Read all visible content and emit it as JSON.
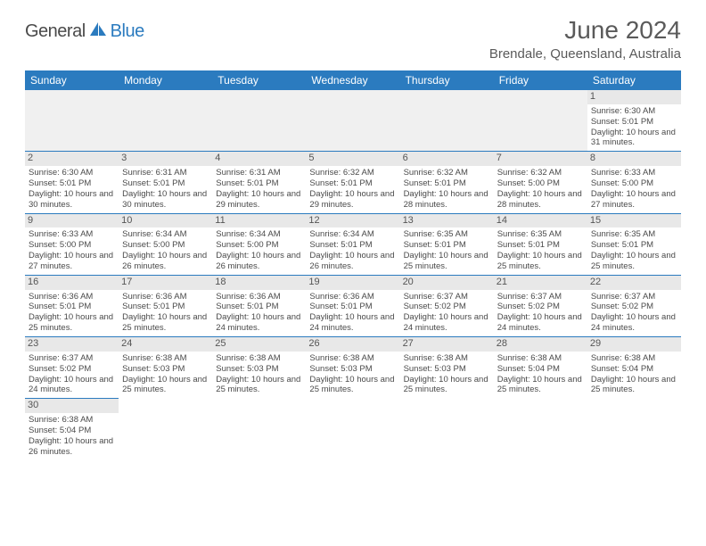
{
  "logo": {
    "text1": "General",
    "text2": "Blue",
    "icon_color": "#2b7bbf"
  },
  "title": "June 2024",
  "location": "Brendale, Queensland, Australia",
  "colors": {
    "header_bg": "#2b7bbf",
    "header_text": "#ffffff",
    "daynum_bg": "#e8e8e8",
    "text": "#4a4a4a",
    "border": "#2b7bbf"
  },
  "weekdays": [
    "Sunday",
    "Monday",
    "Tuesday",
    "Wednesday",
    "Thursday",
    "Friday",
    "Saturday"
  ],
  "days": {
    "1": {
      "sunrise": "6:30 AM",
      "sunset": "5:01 PM",
      "daylight": "10 hours and 31 minutes."
    },
    "2": {
      "sunrise": "6:30 AM",
      "sunset": "5:01 PM",
      "daylight": "10 hours and 30 minutes."
    },
    "3": {
      "sunrise": "6:31 AM",
      "sunset": "5:01 PM",
      "daylight": "10 hours and 30 minutes."
    },
    "4": {
      "sunrise": "6:31 AM",
      "sunset": "5:01 PM",
      "daylight": "10 hours and 29 minutes."
    },
    "5": {
      "sunrise": "6:32 AM",
      "sunset": "5:01 PM",
      "daylight": "10 hours and 29 minutes."
    },
    "6": {
      "sunrise": "6:32 AM",
      "sunset": "5:01 PM",
      "daylight": "10 hours and 28 minutes."
    },
    "7": {
      "sunrise": "6:32 AM",
      "sunset": "5:00 PM",
      "daylight": "10 hours and 28 minutes."
    },
    "8": {
      "sunrise": "6:33 AM",
      "sunset": "5:00 PM",
      "daylight": "10 hours and 27 minutes."
    },
    "9": {
      "sunrise": "6:33 AM",
      "sunset": "5:00 PM",
      "daylight": "10 hours and 27 minutes."
    },
    "10": {
      "sunrise": "6:34 AM",
      "sunset": "5:00 PM",
      "daylight": "10 hours and 26 minutes."
    },
    "11": {
      "sunrise": "6:34 AM",
      "sunset": "5:00 PM",
      "daylight": "10 hours and 26 minutes."
    },
    "12": {
      "sunrise": "6:34 AM",
      "sunset": "5:01 PM",
      "daylight": "10 hours and 26 minutes."
    },
    "13": {
      "sunrise": "6:35 AM",
      "sunset": "5:01 PM",
      "daylight": "10 hours and 25 minutes."
    },
    "14": {
      "sunrise": "6:35 AM",
      "sunset": "5:01 PM",
      "daylight": "10 hours and 25 minutes."
    },
    "15": {
      "sunrise": "6:35 AM",
      "sunset": "5:01 PM",
      "daylight": "10 hours and 25 minutes."
    },
    "16": {
      "sunrise": "6:36 AM",
      "sunset": "5:01 PM",
      "daylight": "10 hours and 25 minutes."
    },
    "17": {
      "sunrise": "6:36 AM",
      "sunset": "5:01 PM",
      "daylight": "10 hours and 25 minutes."
    },
    "18": {
      "sunrise": "6:36 AM",
      "sunset": "5:01 PM",
      "daylight": "10 hours and 24 minutes."
    },
    "19": {
      "sunrise": "6:36 AM",
      "sunset": "5:01 PM",
      "daylight": "10 hours and 24 minutes."
    },
    "20": {
      "sunrise": "6:37 AM",
      "sunset": "5:02 PM",
      "daylight": "10 hours and 24 minutes."
    },
    "21": {
      "sunrise": "6:37 AM",
      "sunset": "5:02 PM",
      "daylight": "10 hours and 24 minutes."
    },
    "22": {
      "sunrise": "6:37 AM",
      "sunset": "5:02 PM",
      "daylight": "10 hours and 24 minutes."
    },
    "23": {
      "sunrise": "6:37 AM",
      "sunset": "5:02 PM",
      "daylight": "10 hours and 24 minutes."
    },
    "24": {
      "sunrise": "6:38 AM",
      "sunset": "5:03 PM",
      "daylight": "10 hours and 25 minutes."
    },
    "25": {
      "sunrise": "6:38 AM",
      "sunset": "5:03 PM",
      "daylight": "10 hours and 25 minutes."
    },
    "26": {
      "sunrise": "6:38 AM",
      "sunset": "5:03 PM",
      "daylight": "10 hours and 25 minutes."
    },
    "27": {
      "sunrise": "6:38 AM",
      "sunset": "5:03 PM",
      "daylight": "10 hours and 25 minutes."
    },
    "28": {
      "sunrise": "6:38 AM",
      "sunset": "5:04 PM",
      "daylight": "10 hours and 25 minutes."
    },
    "29": {
      "sunrise": "6:38 AM",
      "sunset": "5:04 PM",
      "daylight": "10 hours and 25 minutes."
    },
    "30": {
      "sunrise": "6:38 AM",
      "sunset": "5:04 PM",
      "daylight": "10 hours and 26 minutes."
    }
  },
  "grid": [
    [
      null,
      null,
      null,
      null,
      null,
      null,
      "1"
    ],
    [
      "2",
      "3",
      "4",
      "5",
      "6",
      "7",
      "8"
    ],
    [
      "9",
      "10",
      "11",
      "12",
      "13",
      "14",
      "15"
    ],
    [
      "16",
      "17",
      "18",
      "19",
      "20",
      "21",
      "22"
    ],
    [
      "23",
      "24",
      "25",
      "26",
      "27",
      "28",
      "29"
    ],
    [
      "30",
      null,
      null,
      null,
      null,
      null,
      null
    ]
  ],
  "labels": {
    "sunrise": "Sunrise:",
    "sunset": "Sunset:",
    "daylight": "Daylight:"
  }
}
